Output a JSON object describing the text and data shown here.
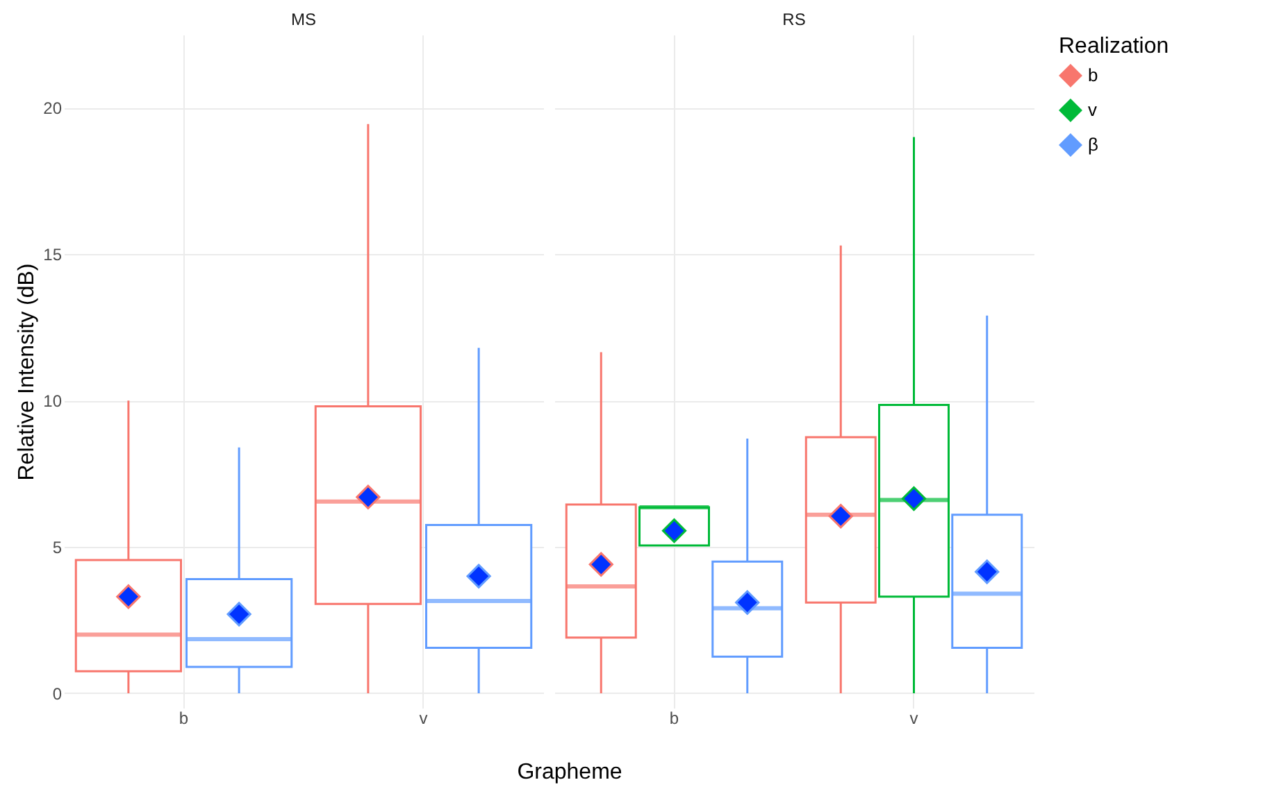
{
  "chart_data": [
    {
      "type": "box",
      "title": "MS",
      "xlabel": "Grapheme",
      "ylabel": "Relative Intensity (dB)",
      "categories": [
        "b",
        "v"
      ],
      "ylim": [
        -0.5,
        22.5
      ],
      "yticks": [
        0,
        5,
        10,
        15,
        20
      ],
      "grid": true,
      "marker": "diamond",
      "series": [
        {
          "color": "#f8766d",
          "boxes": [
            {
              "low": 0,
              "q1": 0.75,
              "median": 2.0,
              "q3": 4.55,
              "high": 10.0,
              "mean": 3.3
            },
            {
              "low": 0,
              "q1": 3.05,
              "median": 6.55,
              "q3": 9.8,
              "high": 19.45,
              "mean": 6.7
            }
          ]
        },
        {
          "color": "#619cff",
          "boxes": [
            {
              "low": 0,
              "q1": 0.9,
              "median": 1.85,
              "q3": 3.9,
              "high": 8.4,
              "mean": 2.7
            },
            {
              "low": 0,
              "q1": 1.55,
              "median": 3.15,
              "q3": 5.75,
              "high": 11.8,
              "mean": 4.0
            }
          ]
        }
      ]
    },
    {
      "type": "box",
      "title": "RS",
      "legend_title": "Realization",
      "categories": [
        "b",
        "v"
      ],
      "ylim": [
        -0.5,
        22.5
      ],
      "yticks": [
        0,
        5,
        10,
        15,
        20
      ],
      "grid": true,
      "legend": "right",
      "marker": "diamond",
      "tick_labels": "x",
      "series": [
        {
          "name": "b",
          "color": "#f8766d",
          "boxes": [
            {
              "low": 0,
              "q1": 1.9,
              "median": 3.65,
              "q3": 6.45,
              "high": 11.65,
              "mean": 4.4
            },
            {
              "low": 0,
              "q1": 3.1,
              "median": 6.1,
              "q3": 8.75,
              "high": 15.3,
              "mean": 6.05
            }
          ]
        },
        {
          "name": "v",
          "color": "#00ba38",
          "boxes": [
            {
              "low": 5.05,
              "q1": 5.05,
              "median": 6.35,
              "q3": 6.35,
              "high": 6.35,
              "mean": 5.55
            },
            {
              "low": 0,
              "q1": 3.3,
              "median": 6.6,
              "q3": 9.85,
              "high": 19.0,
              "mean": 6.65
            }
          ]
        },
        {
          "name": "β",
          "color": "#619cff",
          "boxes": [
            {
              "low": 0,
              "q1": 1.25,
              "median": 2.9,
              "q3": 4.5,
              "high": 8.7,
              "mean": 3.1
            },
            {
              "low": 0,
              "q1": 1.55,
              "median": 3.4,
              "q3": 6.1,
              "high": 12.9,
              "mean": 4.15
            }
          ]
        }
      ]
    }
  ]
}
